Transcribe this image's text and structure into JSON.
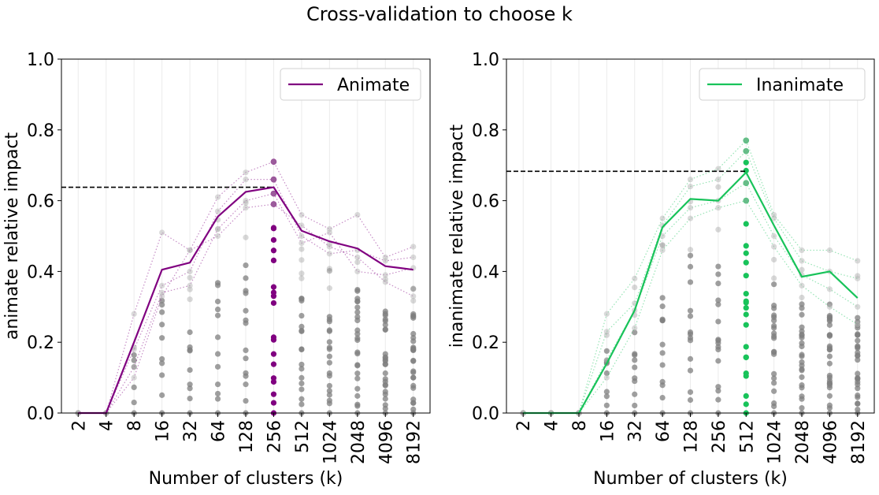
{
  "figure": {
    "title": "Cross-validation to choose k"
  },
  "chart_data": [
    {
      "type": "line",
      "title": "",
      "xlabel": "Number of clusters (k)",
      "ylabel": "animate relative impact",
      "categories": [
        "2",
        "4",
        "8",
        "16",
        "32",
        "64",
        "128",
        "256",
        "512",
        "1024",
        "2048",
        "4096",
        "8192"
      ],
      "ylim": [
        0,
        1.0
      ],
      "yticks": [
        "0.0",
        "0.2",
        "0.4",
        "0.6",
        "0.8",
        "1.0"
      ],
      "grid": "vertical",
      "legend": "top-right",
      "color": "#800080",
      "series": [
        {
          "name": "Animate",
          "values": [
            0.0,
            0.0,
            0.2,
            0.405,
            0.425,
            0.555,
            0.625,
            0.638,
            0.515,
            0.485,
            0.465,
            0.415,
            0.405
          ]
        }
      ],
      "best_k": "256",
      "best_value": 0.638,
      "fold_values": [
        [
          0.0,
          0.0,
          0.28,
          0.51,
          0.46,
          0.61,
          0.68,
          0.71,
          0.56,
          0.52,
          0.56,
          0.44,
          0.47
        ],
        [
          0.0,
          0.0,
          0.18,
          0.36,
          0.4,
          0.57,
          0.66,
          0.66,
          0.5,
          0.45,
          0.46,
          0.43,
          0.44
        ],
        [
          0.0,
          0.0,
          0.13,
          0.34,
          0.36,
          0.52,
          0.6,
          0.62,
          0.48,
          0.51,
          0.4,
          0.39,
          0.41
        ],
        [
          0.0,
          0.0,
          0.1,
          0.33,
          0.46,
          0.5,
          0.58,
          0.59,
          0.53,
          0.47,
          0.44,
          0.37,
          0.33
        ]
      ]
    },
    {
      "type": "line",
      "title": "",
      "xlabel": "Number of clusters (k)",
      "ylabel": "inanimate relative impact",
      "categories": [
        "2",
        "4",
        "8",
        "16",
        "32",
        "64",
        "128",
        "256",
        "512",
        "1024",
        "2048",
        "4096",
        "8192"
      ],
      "ylim": [
        0,
        1.0
      ],
      "yticks": [
        "0.0",
        "0.2",
        "0.4",
        "0.6",
        "0.8",
        "1.0"
      ],
      "grid": "vertical",
      "legend": "top-right",
      "color": "#18c35a",
      "series": [
        {
          "name": "Inanimate",
          "values": [
            0.0,
            0.0,
            0.0,
            0.14,
            0.29,
            0.525,
            0.605,
            0.6,
            0.68,
            0.53,
            0.385,
            0.4,
            0.325
          ]
        }
      ],
      "best_k": "512",
      "best_value": 0.683,
      "fold_values": [
        [
          0.0,
          0.0,
          0.0,
          0.28,
          0.38,
          0.55,
          0.66,
          0.69,
          0.77,
          0.56,
          0.46,
          0.46,
          0.43
        ],
        [
          0.0,
          0.0,
          0.0,
          0.23,
          0.31,
          0.53,
          0.64,
          0.66,
          0.74,
          0.55,
          0.43,
          0.4,
          0.38
        ],
        [
          0.0,
          0.0,
          0.0,
          0.15,
          0.29,
          0.5,
          0.58,
          0.6,
          0.65,
          0.5,
          0.39,
          0.35,
          0.3
        ],
        [
          0.0,
          0.0,
          0.0,
          0.1,
          0.24,
          0.46,
          0.55,
          0.58,
          0.6,
          0.47,
          0.36,
          0.3,
          0.25
        ]
      ]
    }
  ]
}
